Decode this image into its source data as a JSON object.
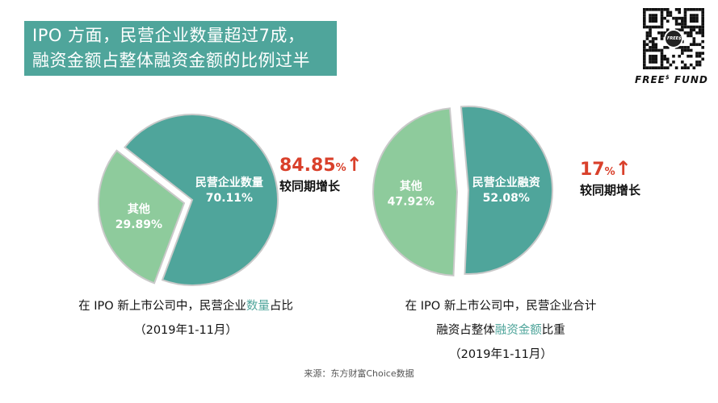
{
  "header": {
    "title_line1": "IPO 方面，民营企业数量超过7成，",
    "title_line2": "融资金额占整体融资金额的比例过半"
  },
  "brand": {
    "name": "FREE$ FUND",
    "qr_label": "FREE$"
  },
  "colors": {
    "primary": "#4fa59b",
    "secondary": "#8ecb9c",
    "accent": "#d9402b"
  },
  "chart_data": [
    {
      "type": "pie",
      "slices": [
        {
          "label": "民营企业数量",
          "value": 70.11,
          "display": "70.11%"
        },
        {
          "label": "其他",
          "value": 29.89,
          "display": "29.89%"
        }
      ],
      "annotation": {
        "value": "84.85",
        "unit": "%",
        "label": "较同期增长",
        "direction": "up"
      },
      "caption": {
        "pre": "在 IPO 新上市公司中，民营企业",
        "highlight": "数量",
        "post": "占比",
        "line2": "（2019年1-11月）"
      }
    },
    {
      "type": "pie",
      "slices": [
        {
          "label": "民营企业融资",
          "value": 52.08,
          "display": "52.08%"
        },
        {
          "label": "其他",
          "value": 47.92,
          "display": "47.92%"
        }
      ],
      "annotation": {
        "value": "17",
        "unit": "%",
        "label": "较同期增长",
        "direction": "up"
      },
      "caption": {
        "line1": "在 IPO 新上市公司中，民营企业合计",
        "pre": "融资占整体",
        "highlight": "融资金额",
        "post": "比重",
        "line3": "（2019年1-11月）"
      }
    }
  ],
  "source": "来源：东方财富Choice数据"
}
